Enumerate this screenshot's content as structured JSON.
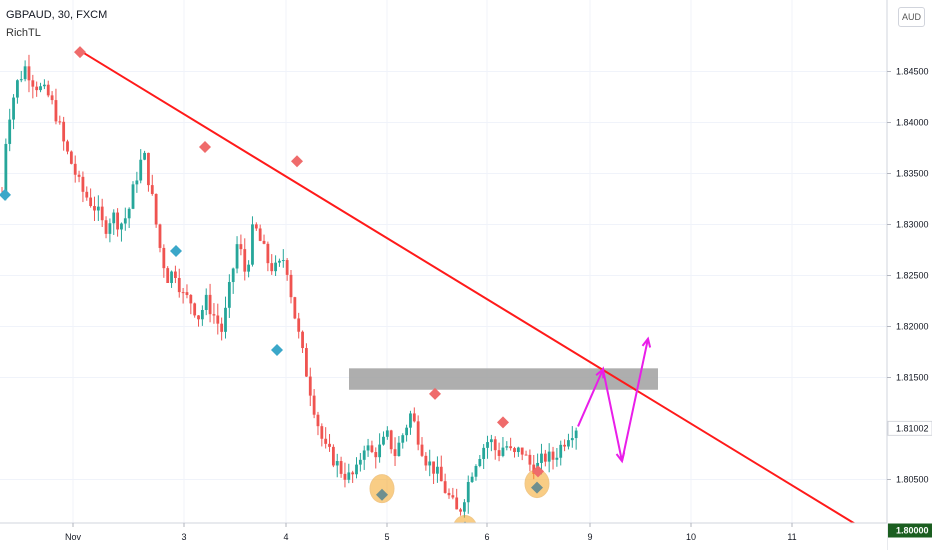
{
  "header": {
    "symbol": "GBPAUD, 30, FXCM",
    "indicator": "RichTL"
  },
  "currency_button": "AUD",
  "chart_data": {
    "type": "candlestick",
    "title": "GBPAUD, 30, FXCM",
    "x_ticks": [
      "Nov",
      "3",
      "4",
      "5",
      "6",
      "9",
      "10",
      "11"
    ],
    "y_ticks": [
      1.845,
      1.84,
      1.835,
      1.83,
      1.825,
      1.82,
      1.815,
      1.805
    ],
    "y_tick_labels": [
      "1.84500",
      "1.84000",
      "1.83500",
      "1.83000",
      "1.82500",
      "1.82000",
      "1.81500",
      "1.80500"
    ],
    "ylim": [
      1.7975,
      1.8495
    ],
    "grid": true,
    "current_price": {
      "value": 1.81002,
      "label": "1.81002"
    },
    "support_level": {
      "value": 1.8,
      "label": "1.80000",
      "color": "#1b5e20"
    },
    "trendline": {
      "from": {
        "x": "Nov",
        "y": 1.8471
      },
      "to": {
        "x": "11.7",
        "y": 1.8
      },
      "color": "#ff1a1a"
    },
    "resistance_zone": {
      "y_low": 1.8138,
      "y_high": 1.8159,
      "color": "#a0a0a0"
    },
    "projection_path": [
      1.8102,
      1.8158,
      1.8068,
      1.8188
    ],
    "pivot_highs": [
      1.8469,
      1.8376,
      1.8362,
      1.8134,
      1.8106,
      1.8058
    ],
    "pivot_lows": [
      1.8329,
      1.8274,
      1.8177,
      1.8035,
      1.8003,
      1.8042
    ],
    "circled_lows": [
      1.8041,
      1.8001,
      1.8046
    ],
    "up_color": "#26a69a",
    "down_color": "#ef5350",
    "projection_color": "#e91ee9"
  }
}
